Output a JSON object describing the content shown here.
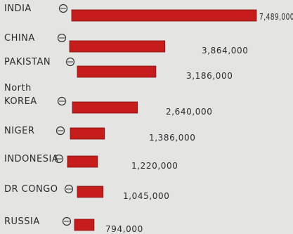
{
  "chart_data": {
    "type": "bar",
    "orientation": "horizontal",
    "title": "",
    "xlabel": "",
    "ylabel": "",
    "legend": "none",
    "grid": false,
    "colors": {
      "bar": "#c71c1c",
      "background": "#e4e4e2",
      "ink": "#2b2b2b"
    },
    "categories": [
      "INDIA",
      "CHINA",
      "PAKISTAN",
      "North KOREA",
      "NIGER",
      "INDONESIA",
      "DR CONGO",
      "RUSSIA"
    ],
    "category_lines": [
      [
        "INDIA"
      ],
      [
        "CHINA"
      ],
      [
        "PAKISTAN"
      ],
      [
        "North",
        "KOREA"
      ],
      [
        "NIGER"
      ],
      [
        "INDONESIA"
      ],
      [
        "DR CONGO"
      ],
      [
        "RUSSIA"
      ]
    ],
    "values": [
      7489000,
      3864000,
      3186000,
      2640000,
      1386000,
      1220000,
      1045000,
      794000
    ],
    "value_labels": [
      "7,489,000",
      "3,864,000",
      "3,186,000",
      "2,640,000",
      "1,386,000",
      "1,220,000",
      "1,045,000",
      "794,000"
    ],
    "flag_icons": [
      "india-flag-icon",
      "china-flag-icon",
      "pakistan-flag-icon",
      "north-korea-flag-icon",
      "niger-flag-icon",
      "indonesia-flag-icon",
      "dr-congo-flag-icon",
      "russia-flag-icon"
    ]
  }
}
